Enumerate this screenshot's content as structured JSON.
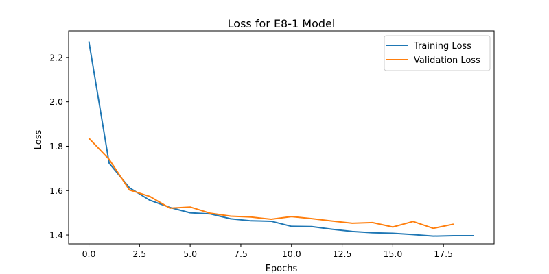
{
  "chart_data": {
    "type": "line",
    "title": "Loss for E8-1 Model",
    "xlabel": "Epochs",
    "ylabel": "Loss",
    "xlim": [
      -1.0,
      20.0
    ],
    "ylim": [
      1.36,
      2.32
    ],
    "xticks": [
      0.0,
      2.5,
      5.0,
      7.5,
      10.0,
      12.5,
      15.0,
      17.5
    ],
    "xtick_labels": [
      "0.0",
      "2.5",
      "5.0",
      "7.5",
      "10.0",
      "12.5",
      "15.0",
      "17.5"
    ],
    "yticks": [
      1.4,
      1.6,
      1.8,
      2.0,
      2.2
    ],
    "ytick_labels": [
      "1.4",
      "1.6",
      "1.8",
      "2.0",
      "2.2"
    ],
    "grid": false,
    "legend_position": "top-right",
    "series": [
      {
        "name": "Training Loss",
        "color": "#1f77b4",
        "x": [
          0,
          1,
          2,
          3,
          4,
          5,
          6,
          7,
          8,
          9,
          10,
          11,
          12,
          13,
          14,
          15,
          16,
          17,
          18,
          19
        ],
        "values": [
          2.272,
          1.724,
          1.613,
          1.557,
          1.524,
          1.5,
          1.495,
          1.473,
          1.464,
          1.462,
          1.439,
          1.438,
          1.426,
          1.416,
          1.41,
          1.408,
          1.402,
          1.395,
          1.397,
          1.397
        ]
      },
      {
        "name": "Validation Loss",
        "color": "#ff7f0e",
        "x": [
          0,
          1,
          2,
          3,
          4,
          5,
          6,
          7,
          8,
          9,
          10,
          11,
          12,
          13,
          14,
          15,
          16,
          17,
          18
        ],
        "values": [
          1.836,
          1.741,
          1.603,
          1.574,
          1.521,
          1.526,
          1.498,
          1.485,
          1.481,
          1.471,
          1.483,
          1.474,
          1.463,
          1.453,
          1.456,
          1.436,
          1.461,
          1.43,
          1.449
        ]
      }
    ]
  }
}
